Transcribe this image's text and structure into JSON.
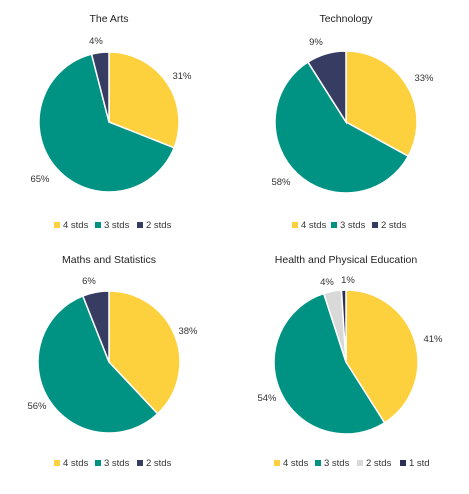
{
  "colors": {
    "4 stds": "#FDD13D",
    "3 stds": "#009384",
    "2 stds": "#373C63",
    "2 stds light": "#D9D9D9",
    "1 std": "#2B2F55"
  },
  "chart_data": [
    {
      "type": "pie",
      "title": "The Arts",
      "slices": [
        {
          "label": "4 stds",
          "value": 31,
          "display": "31%",
          "color_key": "4 stds"
        },
        {
          "label": "3 stds",
          "value": 65,
          "display": "65%",
          "color_key": "3 stds"
        },
        {
          "label": "2 stds",
          "value": 4,
          "display": "4%",
          "color_key": "2 stds"
        }
      ],
      "legend": [
        "4 stds",
        "3 stds",
        "2 stds"
      ],
      "legend_placement": "bottom"
    },
    {
      "type": "pie",
      "title": "Technology",
      "slices": [
        {
          "label": "4 stds",
          "value": 33,
          "display": "33%",
          "color_key": "4 stds"
        },
        {
          "label": "3 stds",
          "value": 58,
          "display": "58%",
          "color_key": "3 stds"
        },
        {
          "label": "2 stds",
          "value": 9,
          "display": "9%",
          "color_key": "2 stds"
        }
      ],
      "legend": [
        "4 stds",
        "3 stds",
        "2 stds"
      ],
      "legend_placement": "bottom"
    },
    {
      "type": "pie",
      "title": "Maths and Statistics",
      "slices": [
        {
          "label": "4 stds",
          "value": 38,
          "display": "38%",
          "color_key": "4 stds"
        },
        {
          "label": "3 stds",
          "value": 56,
          "display": "56%",
          "color_key": "3 stds"
        },
        {
          "label": "2 stds",
          "value": 6,
          "display": "6%",
          "color_key": "2 stds"
        }
      ],
      "legend": [
        "4 stds",
        "3 stds",
        "2 stds"
      ],
      "legend_placement": "bottom"
    },
    {
      "type": "pie",
      "title": "Health and Physical Education",
      "slices": [
        {
          "label": "4 stds",
          "value": 41,
          "display": "41%",
          "color_key": "4 stds"
        },
        {
          "label": "3 stds",
          "value": 54,
          "display": "54%",
          "color_key": "3 stds"
        },
        {
          "label": "2 stds",
          "value": 4,
          "display": "4%",
          "color_key": "2 stds light"
        },
        {
          "label": "1 std",
          "value": 1,
          "display": "1%",
          "color_key": "1 std"
        }
      ],
      "legend": [
        "4 stds",
        "3 stds",
        "2 stds",
        "1 std"
      ],
      "legend_placement": "bottom"
    }
  ]
}
